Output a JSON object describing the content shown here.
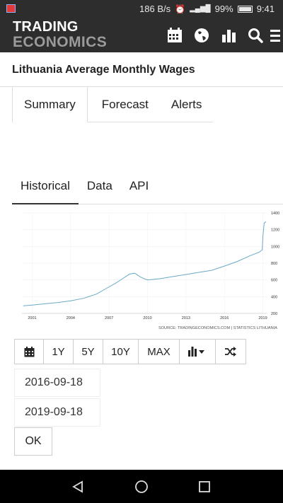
{
  "status_bar": {
    "network_speed": "186 B/s",
    "signal": "4G",
    "battery": "99%",
    "time": "9:41"
  },
  "brand": {
    "line1": "TRADING",
    "line2": "ECONOMICS"
  },
  "app_icons": [
    "calendar-icon",
    "globe-icon",
    "bar-chart-icon",
    "search-icon",
    "menu-icon"
  ],
  "page": {
    "title": "Lithuania Average Monthly Wages"
  },
  "top_tabs": [
    {
      "label": "Summary",
      "active": true
    },
    {
      "label": "Forecast",
      "active": false
    },
    {
      "label": "Alerts",
      "active": false
    }
  ],
  "sub_tabs": [
    {
      "label": "Historical",
      "active": true
    },
    {
      "label": "Data",
      "active": false
    },
    {
      "label": "API",
      "active": false
    }
  ],
  "chart_data": {
    "type": "line",
    "title": "",
    "source": "SOURCE: TRADINGECONOMICS.COM | STATISTICS LITHUANIA",
    "x_ticks": [
      "2001",
      "2004",
      "2007",
      "2010",
      "2013",
      "2016",
      "2019"
    ],
    "y_ticks": [
      "200",
      "400",
      "600",
      "800",
      "1000",
      "1200",
      "1400"
    ],
    "ylim": [
      200,
      1400
    ],
    "xlim": [
      2000.2,
      2019.3
    ],
    "series": [
      {
        "color": "#6aaac4",
        "x": [
          2000.3,
          2001.0,
          2002.0,
          2003.0,
          2004.0,
          2005.0,
          2006.0,
          2006.8,
          2007.5,
          2008.0,
          2008.6,
          2009.0,
          2009.5,
          2010.0,
          2011.0,
          2012.0,
          2013.0,
          2014.0,
          2015.0,
          2016.0,
          2017.0,
          2018.0,
          2018.7,
          2018.95,
          2019.0,
          2019.1,
          2019.25
        ],
        "y": [
          290,
          300,
          315,
          330,
          350,
          380,
          430,
          500,
          560,
          610,
          670,
          680,
          630,
          600,
          615,
          640,
          665,
          690,
          715,
          765,
          820,
          890,
          930,
          960,
          1120,
          1280,
          1295
        ]
      }
    ],
    "grid": true
  },
  "toolbar": {
    "calendar_icon": "calendar-icon",
    "ranges": [
      "1Y",
      "5Y",
      "10Y",
      "MAX"
    ],
    "chart_type_icon": "bar-chart-icon",
    "compare_icon": "shuffle-icon"
  },
  "date_range": {
    "start": "2016-09-18",
    "end": "2019-09-18",
    "ok_label": "OK"
  },
  "nav_bar": [
    "back-icon",
    "home-icon",
    "recents-icon"
  ]
}
